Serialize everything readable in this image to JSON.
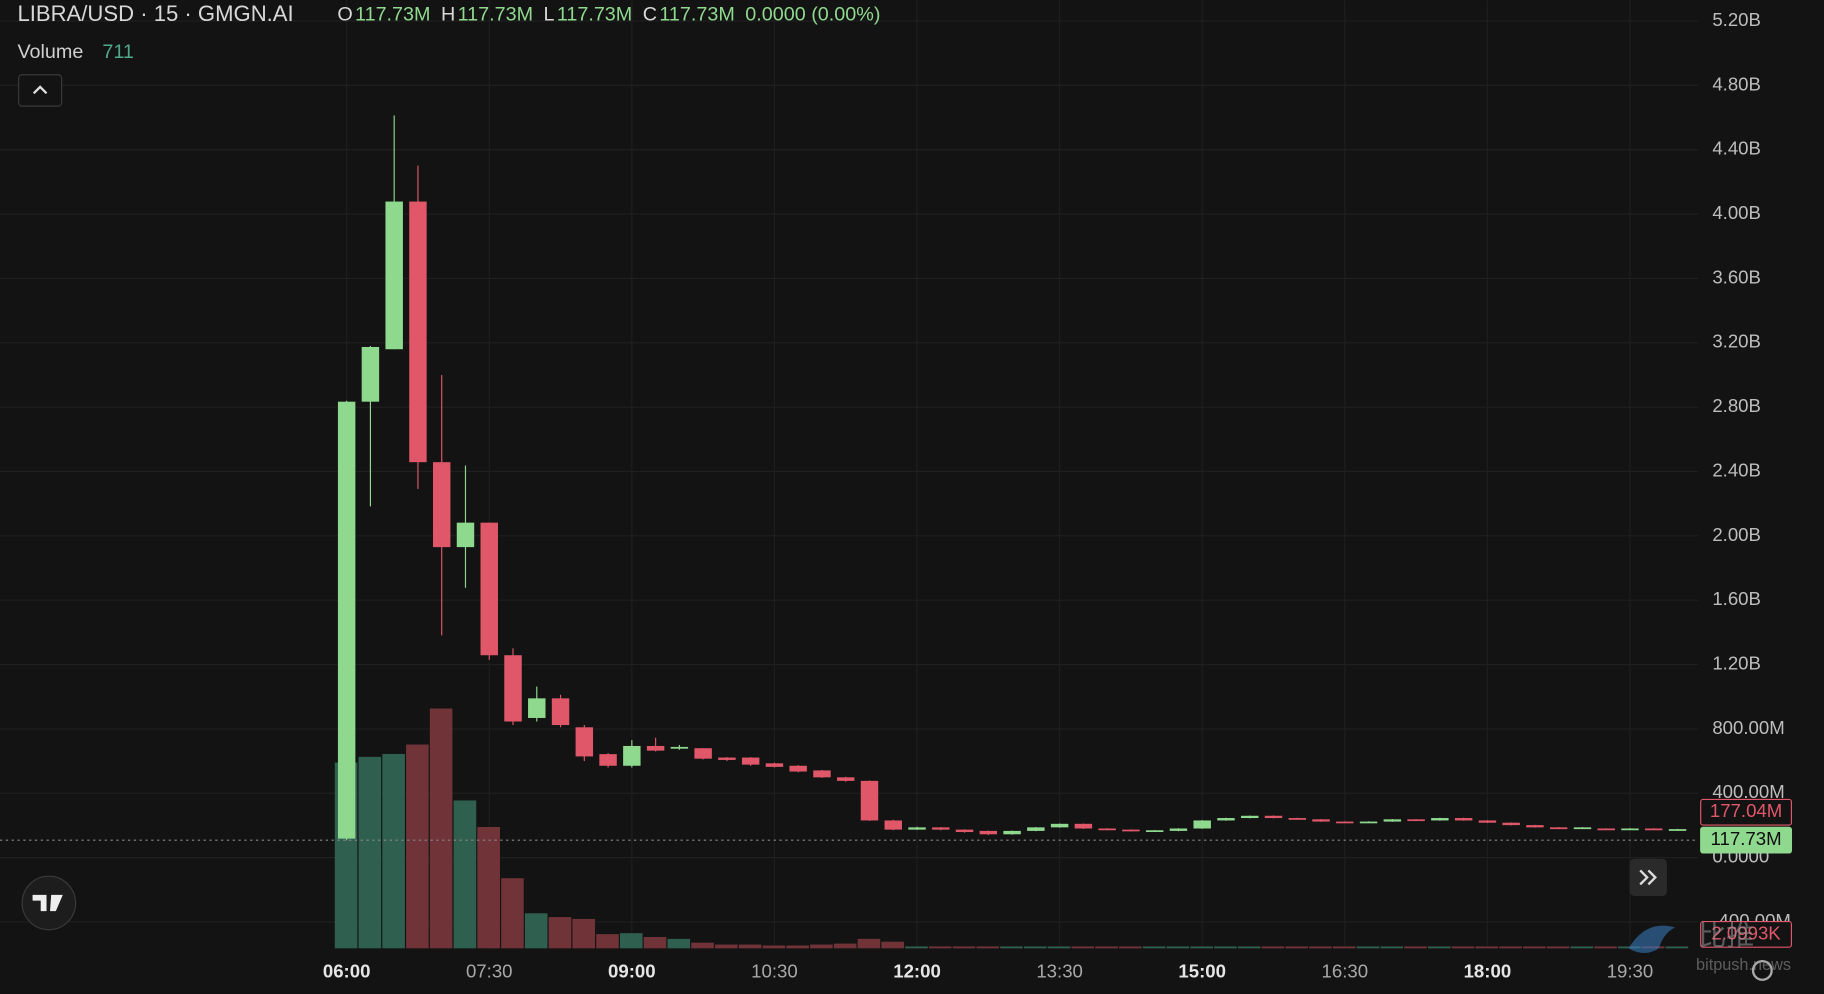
{
  "chart_data": {
    "type": "candlestick",
    "title": "LIBRA/USD · 15 · GMGN.AI",
    "ohlc_legend": [
      {
        "label": "O",
        "value": "117.73M"
      },
      {
        "label": "H",
        "value": "117.73M"
      },
      {
        "label": "L",
        "value": "117.73M"
      },
      {
        "label": "C",
        "value": "117.73M"
      }
    ],
    "change": "0.0000 (0.00%)",
    "volume_legend": {
      "label": "Volume",
      "value": "711"
    },
    "categories": [
      "06:00",
      null,
      null,
      null,
      null,
      null,
      "07:30",
      null,
      null,
      null,
      null,
      null,
      "09:00",
      null,
      null,
      null,
      null,
      null,
      "10:30",
      null,
      null,
      null,
      null,
      null,
      "12:00",
      null,
      null,
      null,
      null,
      null,
      "13:30",
      null,
      null,
      null,
      null,
      null,
      "15:00",
      null,
      null,
      null,
      null,
      null,
      "16:30",
      null,
      null,
      null,
      null,
      null,
      "18:00",
      null,
      null,
      null,
      null,
      null,
      "19:30",
      null,
      null
    ],
    "open": [
      118,
      2834,
      3160,
      4078,
      2458,
      1930,
      2082,
      1258,
      868,
      990,
      810,
      643,
      571,
      694,
      680,
      680,
      622,
      622,
      586,
      571,
      542,
      499,
      477,
      231,
      174,
      188,
      174,
      166,
      145,
      166,
      188,
      210,
      181,
      174,
      166,
      166,
      181,
      231,
      246,
      260,
      246,
      238,
      224,
      217,
      224,
      238,
      231,
      246,
      231,
      217,
      202,
      188,
      181,
      181,
      174,
      181,
      174
    ],
    "high": [
      2840,
      3180,
      4613,
      4302,
      3000,
      2437,
      2082,
      1301,
      1063,
      1012,
      824,
      650,
      730,
      745,
      700,
      680,
      625,
      625,
      590,
      575,
      545,
      502,
      480,
      235,
      192,
      190,
      176,
      168,
      168,
      190,
      212,
      212,
      183,
      176,
      172,
      183,
      233,
      248,
      262,
      262,
      248,
      240,
      226,
      226,
      240,
      240,
      248,
      248,
      233,
      219,
      204,
      190,
      190,
      183,
      183,
      183,
      179
    ],
    "low": [
      108,
      2183,
      3160,
      2292,
      1381,
      1677,
      1229,
      824,
      846,
      810,
      600,
      560,
      560,
      660,
      670,
      610,
      600,
      570,
      560,
      530,
      495,
      472,
      228,
      170,
      172,
      170,
      155,
      140,
      142,
      164,
      186,
      178,
      170,
      162,
      164,
      164,
      179,
      229,
      244,
      244,
      236,
      222,
      215,
      215,
      222,
      229,
      229,
      229,
      215,
      200,
      186,
      179,
      179,
      172,
      172,
      172,
      172
    ],
    "close": [
      2834,
      3174,
      4078,
      2458,
      1930,
      2082,
      1258,
      846,
      990,
      824,
      629,
      571,
      694,
      665,
      688,
      615,
      607,
      578,
      564,
      535,
      499,
      477,
      231,
      174,
      188,
      174,
      159,
      145,
      166,
      188,
      210,
      181,
      174,
      166,
      170,
      181,
      231,
      246,
      260,
      246,
      238,
      224,
      217,
      224,
      238,
      231,
      246,
      231,
      217,
      202,
      188,
      181,
      188,
      174,
      181,
      174,
      177
    ],
    "volume": [
      196,
      202,
      205,
      215,
      253,
      156,
      128,
      74,
      37,
      33,
      31,
      15,
      16,
      12,
      10,
      6,
      4,
      4,
      3,
      3,
      4,
      5,
      10,
      7,
      2,
      2,
      2,
      2,
      2,
      2,
      2,
      2,
      2,
      2,
      2,
      2,
      2,
      2,
      2,
      2,
      2,
      2,
      2,
      2,
      2,
      2,
      2,
      2,
      2,
      2,
      2,
      2,
      2,
      2,
      2,
      2,
      2
    ],
    "vlim": [
      0,
      1000
    ],
    "up_color": "#8fd98f",
    "down_color": "#e0576a",
    "volume_up_color": "#2f5f4f",
    "volume_down_color": "#6f3338",
    "ylim": [
      -564,
      5329
    ],
    "yticks": [
      {
        "value": 5200,
        "label": "5.20B"
      },
      {
        "value": 4800,
        "label": "4.80B"
      },
      {
        "value": 4400,
        "label": "4.40B"
      },
      {
        "value": 4000,
        "label": "4.00B"
      },
      {
        "value": 3600,
        "label": "3.60B"
      },
      {
        "value": 3200,
        "label": "3.20B"
      },
      {
        "value": 2800,
        "label": "2.80B"
      },
      {
        "value": 2400,
        "label": "2.40B"
      },
      {
        "value": 2000,
        "label": "2.00B"
      },
      {
        "value": 1600,
        "label": "1.60B"
      },
      {
        "value": 1200,
        "label": "1.20B"
      },
      {
        "value": 800,
        "label": "800.00M"
      },
      {
        "value": 400,
        "label": "400.00M"
      },
      {
        "value": 0,
        "label": "0.0000"
      },
      {
        "value": -400,
        "label": "-400.00M"
      }
    ],
    "price_labels": [
      {
        "text": "177.04M",
        "color": "#e0576a"
      },
      {
        "text": "117.73M",
        "color": "#8fd98f"
      },
      {
        "text": "2.0993K",
        "color": "#e0576a"
      }
    ],
    "grid": true,
    "watermark": {
      "cn": "比推",
      "en": "bitpush.news"
    }
  }
}
